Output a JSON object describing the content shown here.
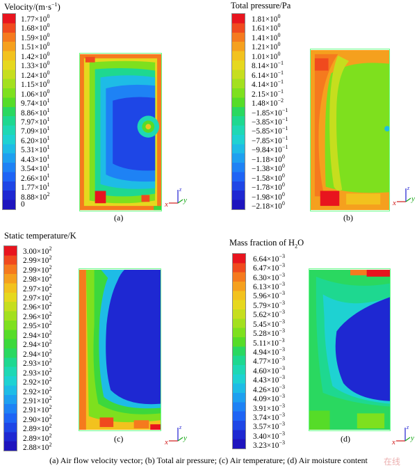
{
  "panels": [
    {
      "title": "Velocity/(m·s<sup>−1</sup>)",
      "label": "(a)",
      "ticks": [
        "1.77×10<sup>0</sup>",
        "1.68×10<sup>0</sup>",
        "1.59×10<sup>0</sup>",
        "1.51×10<sup>0</sup>",
        "1.42×10<sup>0</sup>",
        "1.33×10<sup>0</sup>",
        "1.24×10<sup>0</sup>",
        "1.15×10<sup>0</sup>",
        "1.06×10<sup>0</sup>",
        "9.74×10<sup>1</sup>",
        "8.86×10<sup>1</sup>",
        "7.97×10<sup>1</sup>",
        "7.09×10<sup>1</sup>",
        "6.20×10<sup>1</sup>",
        "5.31×10<sup>1</sup>",
        "4.43×10<sup>1</sup>",
        "3.54×10<sup>1</sup>",
        "2.66×10<sup>1</sup>",
        "1.77×10<sup>1</sup>",
        "8.88×10<sup>2</sup>",
        "0"
      ]
    },
    {
      "title": "Total pressure/Pa",
      "label": "(b)",
      "ticks": [
        "1.81×10<sup>0</sup>",
        "1.61×10<sup>0</sup>",
        "1.41×10<sup>0</sup>",
        "1.21×10<sup>0</sup>",
        "1.01×10<sup>0</sup>",
        "8.14×10<sup>−1</sup>",
        "6.14×10<sup>−1</sup>",
        "4.14×10<sup>−1</sup>",
        "2.15×10<sup>−1</sup>",
        "1.48×10<sup>−2</sup>",
        "−1.85×10<sup>−1</sup>",
        "−3.85×10<sup>−1</sup>",
        "−5.85×10<sup>−1</sup>",
        "−7.85×10<sup>−1</sup>",
        "−9.84×10<sup>−1</sup>",
        "−1.18×10<sup>0</sup>",
        "−1.38×10<sup>0</sup>",
        "−1.58×10<sup>0</sup>",
        "−1.78×10<sup>0</sup>",
        "−1.98×10<sup>0</sup>",
        "−2.18×10<sup>0</sup>"
      ]
    },
    {
      "title": "Static temperature/K",
      "label": "(c)",
      "ticks": [
        "3.00×10<sup>2</sup>",
        "2.99×10<sup>2</sup>",
        "2.99×10<sup>2</sup>",
        "2.98×10<sup>2</sup>",
        "2.97×10<sup>2</sup>",
        "2.97×10<sup>2</sup>",
        "2.96×10<sup>2</sup>",
        "2.96×10<sup>2</sup>",
        "2.95×10<sup>2</sup>",
        "2.94×10<sup>2</sup>",
        "2.94×10<sup>2</sup>",
        "2.94×10<sup>2</sup>",
        "2.93×10<sup>2</sup>",
        "2.93×10<sup>2</sup>",
        "2.92×10<sup>2</sup>",
        "2.92×10<sup>2</sup>",
        "2.91×10<sup>2</sup>",
        "2.91×10<sup>2</sup>",
        "2.90×10<sup>2</sup>",
        "2.89×10<sup>2</sup>",
        "2.89×10<sup>2</sup>",
        "2.88×10<sup>2</sup>"
      ]
    },
    {
      "title": "Mass fraction of H<sub style=\"font-size:8px\">2</sub>O",
      "label": "(d)",
      "ticks": [
        "6.64×10<sup>−3</sup>",
        "6.47×10<sup>−3</sup>",
        "6.30×10<sup>−3</sup>",
        "6.13×10<sup>−3</sup>",
        "5.96×10<sup>−3</sup>",
        "5.79×10<sup>−3</sup>",
        "5.62×10<sup>−3</sup>",
        "5.45×10<sup>−3</sup>",
        "5.28×10<sup>−3</sup>",
        "5.11×10<sup>−3</sup>",
        "4.94×10<sup>−3</sup>",
        "4.77×10<sup>−3</sup>",
        "4.60×10<sup>−3</sup>",
        "4.43×10<sup>−3</sup>",
        "4.26×10<sup>−3</sup>",
        "4.09×10<sup>−3</sup>",
        "3.91×10<sup>−3</sup>",
        "3.74×10<sup>−3</sup>",
        "3.57×10<sup>−3</sup>",
        "3.40×10<sup>−3</sup>",
        "3.23×10<sup>−3</sup>"
      ]
    }
  ],
  "axis_labels": {
    "x": "x",
    "y": "y",
    "z": "z"
  },
  "caption": "(a)  Air flow velocity vector;  (b)  Total air pressure;  (c) Air temperature;  (d) Air moisture content",
  "watermark": "在线",
  "colors": {
    "scale": [
      "#e8141e",
      "#f04a1e",
      "#f57a1e",
      "#f5a01e",
      "#f2c21e",
      "#e6d81e",
      "#c6de1e",
      "#a3e01e",
      "#7ee01e",
      "#56dc28",
      "#3cd83c",
      "#2ad860",
      "#1ed890",
      "#1ed8b4",
      "#1ed2d2",
      "#1ebce6",
      "#1ea0f0",
      "#1e82f5",
      "#1e64f5",
      "#1e46e6",
      "#1e28d2",
      "#1e14be"
    ]
  }
}
